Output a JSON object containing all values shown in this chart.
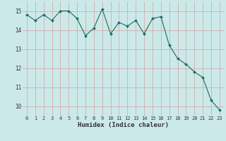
{
  "x": [
    0,
    1,
    2,
    3,
    4,
    5,
    6,
    7,
    8,
    9,
    10,
    11,
    12,
    13,
    14,
    15,
    16,
    17,
    18,
    19,
    20,
    21,
    22,
    23
  ],
  "y": [
    14.8,
    14.5,
    14.8,
    14.5,
    15.0,
    15.0,
    14.6,
    13.7,
    14.1,
    15.1,
    13.8,
    14.4,
    14.2,
    14.5,
    13.8,
    14.6,
    14.7,
    13.2,
    12.5,
    12.2,
    11.8,
    11.5,
    10.3,
    9.8
  ],
  "xlabel": "Humidex (Indice chaleur)",
  "bg_color": "#cce9e9",
  "grid_color": "#c0d8d8",
  "line_color": "#1a6b5e",
  "marker_color": "#1a6b5e",
  "xlim": [
    -0.5,
    23.5
  ],
  "ylim": [
    9.5,
    15.5
  ],
  "yticks": [
    10,
    11,
    12,
    13,
    14,
    15
  ],
  "xtick_labels": [
    "0",
    "1",
    "2",
    "3",
    "4",
    "5",
    "6",
    "7",
    "8",
    "9",
    "10",
    "11",
    "12",
    "13",
    "14",
    "15",
    "16",
    "17",
    "18",
    "19",
    "20",
    "21",
    "22",
    "23"
  ]
}
